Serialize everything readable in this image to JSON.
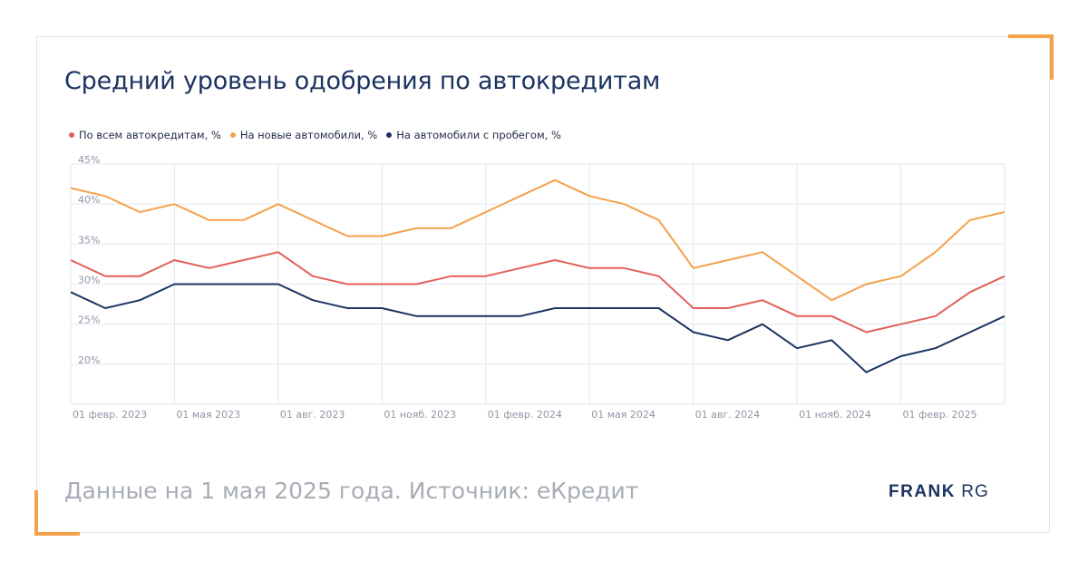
{
  "title": "Средний уровень одобрения по автокредитам",
  "footer_note": "Данные на 1 мая 2025 года. Источник: еКредит",
  "brand": {
    "strong": "FRANK",
    "light": "RG"
  },
  "colors": {
    "accent": "#f4a14a",
    "title": "#1b3461",
    "grid": "#e4e7f2"
  },
  "chart_data": {
    "type": "line",
    "ylim": [
      15,
      45
    ],
    "yticks": [
      20,
      25,
      30,
      35,
      40,
      45
    ],
    "ytick_labels": [
      "20%",
      "25%",
      "30%",
      "35%",
      "40%",
      "45%"
    ],
    "x_labels": [
      "01 февр. 2023",
      "01 мая 2023",
      "01 авг. 2023",
      "01 нояб. 2023",
      "01 февр. 2024",
      "01 мая 2024",
      "01 авг. 2024",
      "01 нояб. 2024",
      "01 февр. 2025"
    ],
    "x_label_every": 3,
    "x": [
      "2023-01",
      "2023-02",
      "2023-03",
      "2023-04",
      "2023-05",
      "2023-06",
      "2023-07",
      "2023-08",
      "2023-09",
      "2023-10",
      "2023-11",
      "2023-12",
      "2024-01",
      "2024-02",
      "2024-03",
      "2024-04",
      "2024-05",
      "2024-06",
      "2024-07",
      "2024-08",
      "2024-09",
      "2024-10",
      "2024-11",
      "2024-12",
      "2025-01",
      "2025-02",
      "2025-03",
      "2025-04"
    ],
    "series": [
      {
        "name": "По всем автокредитам, %",
        "color": "#e2605a",
        "values": [
          33,
          31,
          31,
          33,
          32,
          33,
          34,
          31,
          30,
          30,
          30,
          31,
          31,
          32,
          33,
          32,
          32,
          31,
          27,
          27,
          28,
          26,
          26,
          24,
          25,
          26,
          29,
          31
        ]
      },
      {
        "name": "На новые автомобили, %",
        "color": "#f4a14a",
        "values": [
          42,
          41,
          39,
          40,
          38,
          38,
          40,
          38,
          36,
          36,
          37,
          37,
          39,
          41,
          43,
          41,
          40,
          38,
          32,
          33,
          34,
          31,
          28,
          30,
          31,
          34,
          38,
          39
        ]
      },
      {
        "name": "На автомобили с пробегом, %",
        "color": "#1b3461",
        "values": [
          29,
          27,
          28,
          30,
          30,
          30,
          30,
          28,
          27,
          27,
          26,
          26,
          26,
          26,
          27,
          27,
          27,
          27,
          24,
          23,
          25,
          22,
          23,
          19,
          21,
          22,
          24,
          26
        ]
      }
    ]
  }
}
